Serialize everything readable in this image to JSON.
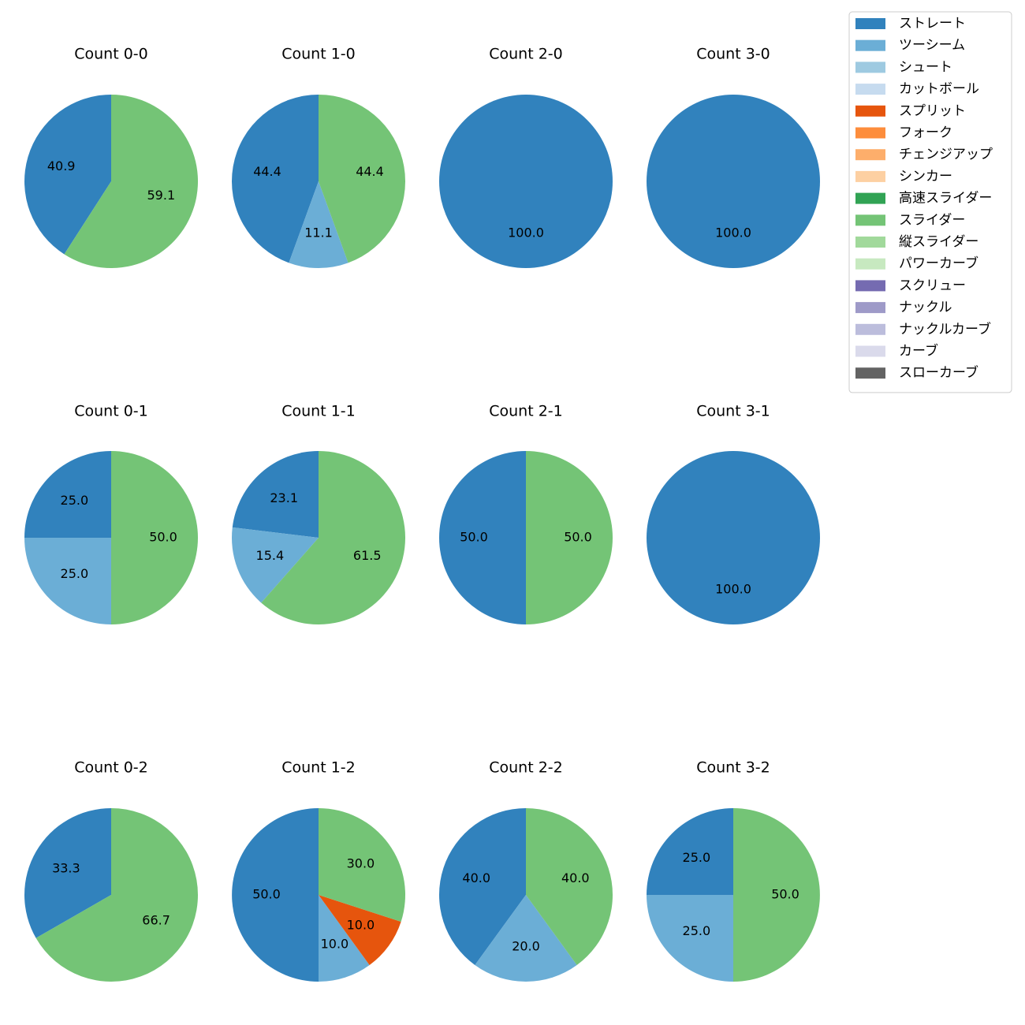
{
  "chart_data": {
    "type": "pie",
    "startangle": 90,
    "direction": "counterclockwise",
    "categories": [
      "ストレート",
      "ツーシーム",
      "シュート",
      "カットボール",
      "スプリット",
      "フォーク",
      "チェンジアップ",
      "シンカー",
      "高速スライダー",
      "スライダー",
      "縦スライダー",
      "パワーカーブ",
      "スクリュー",
      "ナックル",
      "ナックルカーブ",
      "カーブ",
      "スローカーブ"
    ],
    "colors": [
      "#3182bd",
      "#6baed6",
      "#9ecae1",
      "#c6dbef",
      "#e6550d",
      "#fd8d3c",
      "#fdae6b",
      "#fdd0a2",
      "#31a354",
      "#74c476",
      "#a1d99b",
      "#c7e9c0",
      "#756bb1",
      "#9e9ac8",
      "#bcbddc",
      "#dadaeb",
      "#636363"
    ],
    "legend": {
      "placement": "top-right"
    },
    "pies": [
      {
        "title": "Count 0-0",
        "slices": [
          {
            "category": "ストレート",
            "value": 40.9
          },
          {
            "category": "スライダー",
            "value": 59.1
          }
        ]
      },
      {
        "title": "Count 1-0",
        "slices": [
          {
            "category": "ストレート",
            "value": 44.4
          },
          {
            "category": "ツーシーム",
            "value": 11.1
          },
          {
            "category": "スライダー",
            "value": 44.4
          }
        ]
      },
      {
        "title": "Count 2-0",
        "slices": [
          {
            "category": "ストレート",
            "value": 100.0
          }
        ]
      },
      {
        "title": "Count 3-0",
        "slices": [
          {
            "category": "ストレート",
            "value": 100.0
          }
        ]
      },
      {
        "title": "Count 0-1",
        "slices": [
          {
            "category": "ストレート",
            "value": 25.0
          },
          {
            "category": "ツーシーム",
            "value": 25.0
          },
          {
            "category": "スライダー",
            "value": 50.0
          }
        ]
      },
      {
        "title": "Count 1-1",
        "slices": [
          {
            "category": "ストレート",
            "value": 23.1
          },
          {
            "category": "ツーシーム",
            "value": 15.4
          },
          {
            "category": "スライダー",
            "value": 61.5
          }
        ]
      },
      {
        "title": "Count 2-1",
        "slices": [
          {
            "category": "ストレート",
            "value": 50.0
          },
          {
            "category": "スライダー",
            "value": 50.0
          }
        ]
      },
      {
        "title": "Count 3-1",
        "slices": [
          {
            "category": "ストレート",
            "value": 100.0
          }
        ]
      },
      {
        "title": "Count 0-2",
        "slices": [
          {
            "category": "ストレート",
            "value": 33.3
          },
          {
            "category": "スライダー",
            "value": 66.7
          }
        ]
      },
      {
        "title": "Count 1-2",
        "slices": [
          {
            "category": "ストレート",
            "value": 50.0
          },
          {
            "category": "ツーシーム",
            "value": 10.0
          },
          {
            "category": "スプリット",
            "value": 10.0
          },
          {
            "category": "スライダー",
            "value": 30.0
          }
        ]
      },
      {
        "title": "Count 2-2",
        "slices": [
          {
            "category": "ストレート",
            "value": 40.0
          },
          {
            "category": "ツーシーム",
            "value": 20.0
          },
          {
            "category": "スライダー",
            "value": 40.0
          }
        ]
      },
      {
        "title": "Count 3-2",
        "slices": [
          {
            "category": "ストレート",
            "value": 25.0
          },
          {
            "category": "ツーシーム",
            "value": 25.0
          },
          {
            "category": "スライダー",
            "value": 50.0
          }
        ]
      }
    ]
  }
}
